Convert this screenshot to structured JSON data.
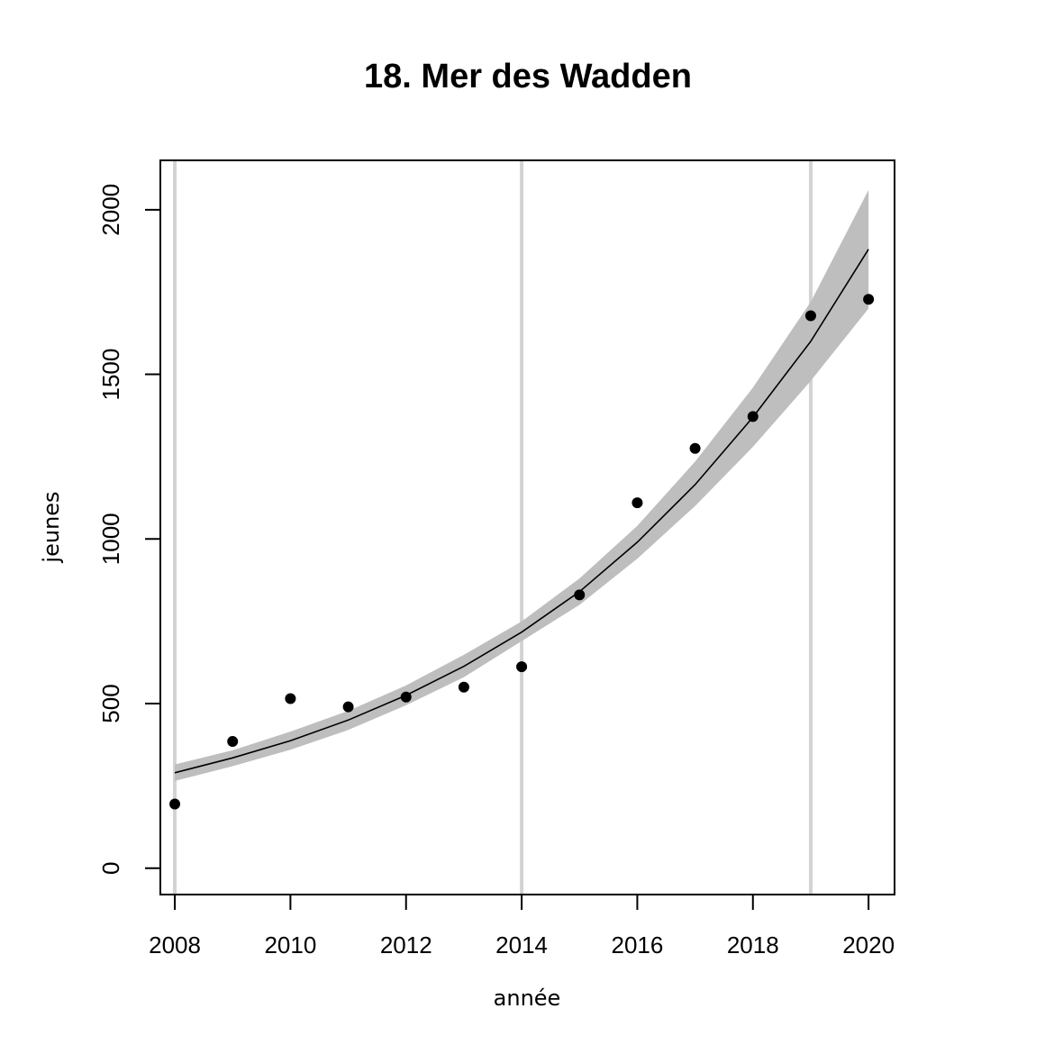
{
  "chart_data": {
    "type": "scatter",
    "title": "18. Mer des Wadden",
    "xlabel": "année",
    "ylabel": "jeunes",
    "xlim": [
      2007.75,
      2020.45
    ],
    "ylim": [
      -80,
      2150
    ],
    "x_ticks": [
      2008,
      2010,
      2012,
      2014,
      2016,
      2018,
      2020
    ],
    "y_ticks": [
      0,
      500,
      1000,
      1500,
      2000
    ],
    "grid": false,
    "legend": "none",
    "vertical_lines": [
      2008,
      2014,
      2019
    ],
    "series": [
      {
        "type": "points",
        "x": [
          2008,
          2009,
          2010,
          2011,
          2012,
          2013,
          2014,
          2015,
          2016,
          2017,
          2018,
          2019,
          2020
        ],
        "y": [
          195,
          385,
          515,
          490,
          520,
          550,
          612,
          830,
          1110,
          1275,
          1372,
          1678,
          1728
        ]
      },
      {
        "type": "fit",
        "x": [
          2008,
          2009,
          2010,
          2011,
          2012,
          2013,
          2014,
          2015,
          2016,
          2017,
          2018,
          2019,
          2020
        ],
        "y": [
          290,
          335,
          387,
          450,
          525,
          613,
          717,
          840,
          990,
          1165,
          1370,
          1600,
          1880
        ],
        "lower": [
          265,
          310,
          360,
          420,
          495,
          580,
          690,
          800,
          940,
          1100,
          1280,
          1480,
          1700
        ],
        "upper": [
          315,
          358,
          415,
          478,
          555,
          648,
          750,
          880,
          1040,
          1235,
          1460,
          1720,
          2060
        ]
      }
    ],
    "colors": {
      "points": "#000000",
      "fit_line": "#000000",
      "band": "#bebebe",
      "vertical_lines": "#d3d3d3",
      "frame": "#000000"
    }
  }
}
